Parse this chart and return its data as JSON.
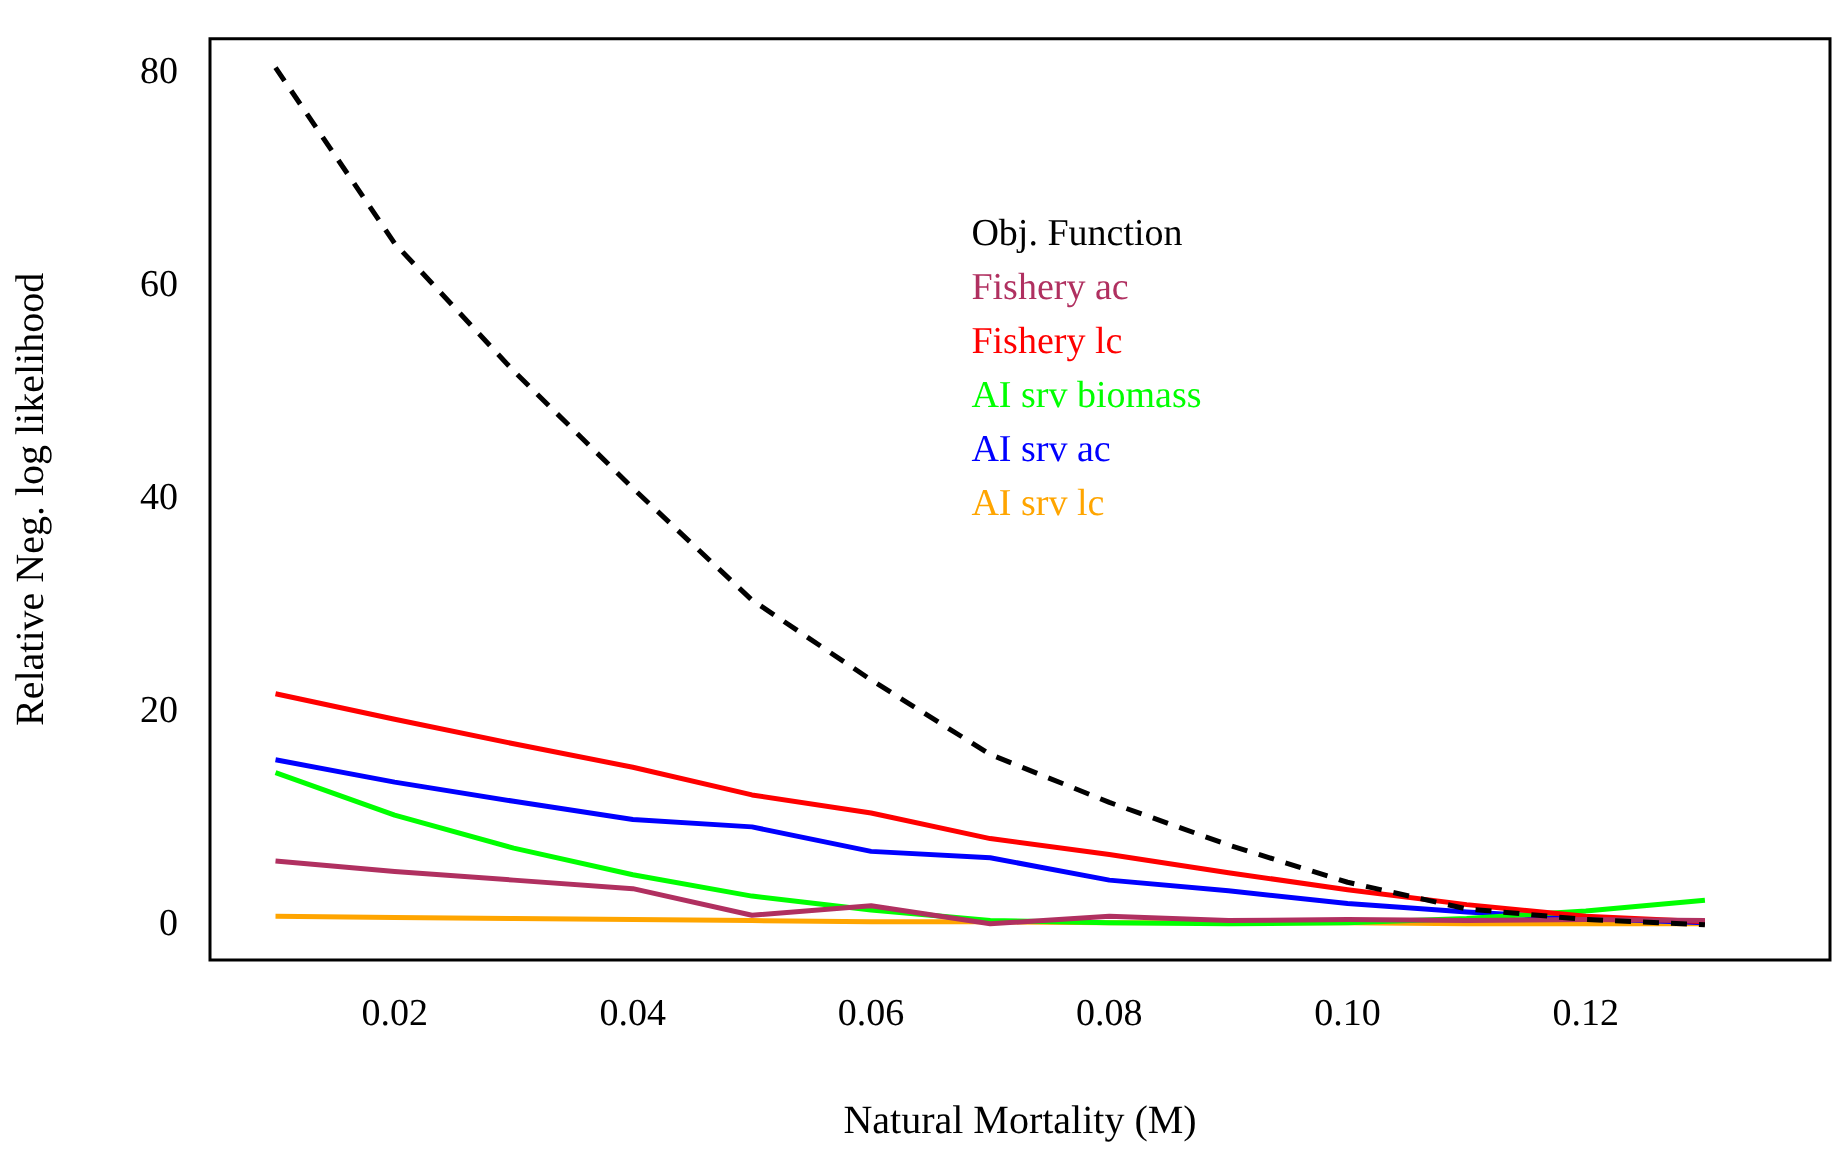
{
  "chart_data": {
    "type": "line",
    "xlabel": "Natural Mortality (M)",
    "ylabel": "Relative Neg. log likelihood",
    "x": [
      0.01,
      0.02,
      0.03,
      0.04,
      0.05,
      0.06,
      0.07,
      0.08,
      0.09,
      0.1,
      0.11,
      0.12,
      0.13
    ],
    "series": [
      {
        "name": "Obj. Function",
        "color": "#000000",
        "line_style": "dashed",
        "values": [
          80.5,
          64,
          52,
          41,
          30.5,
          23,
          16,
          11.5,
          7.5,
          4,
          1.5,
          0.5,
          0
        ]
      },
      {
        "name": "Fishery ac",
        "color": "#b03060",
        "values": [
          6.0,
          5.0,
          4.2,
          3.4,
          0.9,
          1.8,
          0.1,
          0.8,
          0.4,
          0.5,
          0.4,
          0.5,
          0.4
        ]
      },
      {
        "name": "Fishery lc",
        "color": "#ff0000",
        "values": [
          21.7,
          19.3,
          17,
          14.8,
          12.2,
          10.5,
          8.1,
          6.6,
          4.9,
          3.3,
          1.9,
          0.8,
          0.3
        ]
      },
      {
        "name": "AI srv biomass",
        "color": "#00ff00",
        "values": [
          14.3,
          10.3,
          7.2,
          4.7,
          2.7,
          1.4,
          0.4,
          0.2,
          0.1,
          0.2,
          0.6,
          1.3,
          2.3
        ]
      },
      {
        "name": "AI srv ac",
        "color": "#0000ff",
        "values": [
          15.5,
          13.4,
          11.6,
          9.9,
          9.2,
          6.9,
          6.3,
          4.2,
          3.2,
          2.0,
          1.2,
          0.6,
          0.2
        ]
      },
      {
        "name": "AI srv lc",
        "color": "#ffa500",
        "values": [
          0.8,
          0.7,
          0.6,
          0.5,
          0.4,
          0.3,
          0.3,
          0.2,
          0.2,
          0.2,
          0.1,
          0.1,
          0.1
        ]
      }
    ],
    "xlim": [
      0.0045,
      0.1405
    ],
    "ylim": [
      -3.3,
      83.2
    ],
    "xticks": [
      {
        "value": 0.02,
        "label": "0.02"
      },
      {
        "value": 0.04,
        "label": "0.04"
      },
      {
        "value": 0.06,
        "label": "0.06"
      },
      {
        "value": 0.08,
        "label": "0.08"
      },
      {
        "value": 0.1,
        "label": "0.10"
      },
      {
        "value": 0.12,
        "label": "0.12"
      }
    ],
    "yticks": [
      0,
      20,
      40,
      60,
      80
    ],
    "grid": false,
    "legend": "top",
    "marker": "none",
    "line_style": "solid"
  }
}
